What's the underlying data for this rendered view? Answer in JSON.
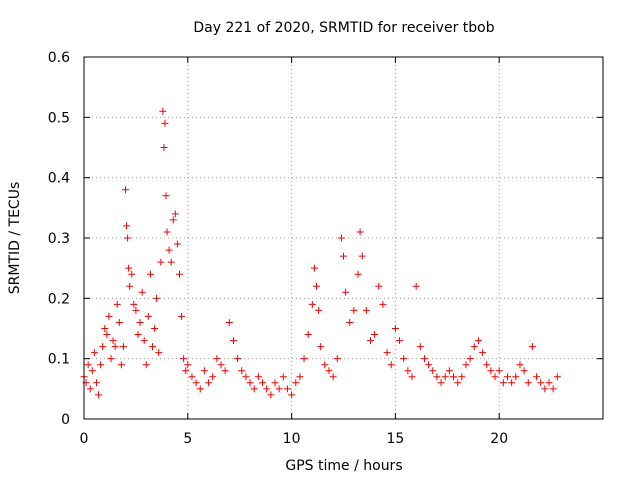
{
  "chart_data": {
    "type": "scatter",
    "title": "Day 221 of 2020, SRMTID for receiver tbob",
    "xlabel": "GPS time / hours",
    "ylabel": "SRMTID / TECUs",
    "xlim": [
      0,
      25
    ],
    "ylim": [
      0,
      0.6
    ],
    "xticks": [
      0,
      5,
      10,
      15,
      20
    ],
    "yticks": [
      0,
      0.1,
      0.2,
      0.3,
      0.4,
      0.5,
      0.6
    ],
    "xtick_labels": [
      "0",
      "5",
      "10",
      "15",
      "20"
    ],
    "ytick_labels": [
      "0",
      "0.1",
      "0.2",
      "0.3",
      "0.4",
      "0.5",
      "0.6"
    ],
    "grid": true,
    "marker": "+",
    "color": "#ff0000",
    "series": [
      {
        "name": "SRMTID",
        "x": [
          0.0,
          0.1,
          0.2,
          0.3,
          0.4,
          0.5,
          0.6,
          0.7,
          0.8,
          0.9,
          1.0,
          1.1,
          1.2,
          1.3,
          1.4,
          1.5,
          1.6,
          1.7,
          1.8,
          1.9,
          2.0,
          2.05,
          2.1,
          2.15,
          2.2,
          2.3,
          2.4,
          2.5,
          2.6,
          2.7,
          2.8,
          2.9,
          3.0,
          3.1,
          3.2,
          3.3,
          3.4,
          3.5,
          3.6,
          3.7,
          3.8,
          3.85,
          3.9,
          3.95,
          4.0,
          4.1,
          4.2,
          4.3,
          4.4,
          4.5,
          4.6,
          4.7,
          4.8,
          4.9,
          5.0,
          5.2,
          5.4,
          5.6,
          5.8,
          6.0,
          6.2,
          6.4,
          6.6,
          6.8,
          7.0,
          7.2,
          7.4,
          7.6,
          7.8,
          8.0,
          8.2,
          8.4,
          8.6,
          8.8,
          9.0,
          9.2,
          9.4,
          9.6,
          9.8,
          10.0,
          10.2,
          10.4,
          10.6,
          10.8,
          11.0,
          11.1,
          11.2,
          11.3,
          11.4,
          11.6,
          11.8,
          12.0,
          12.2,
          12.4,
          12.5,
          12.6,
          12.8,
          13.0,
          13.2,
          13.3,
          13.4,
          13.6,
          13.8,
          14.0,
          14.2,
          14.4,
          14.6,
          14.8,
          15.0,
          15.2,
          15.4,
          15.6,
          15.8,
          16.0,
          16.2,
          16.4,
          16.6,
          16.8,
          17.0,
          17.2,
          17.4,
          17.6,
          17.8,
          18.0,
          18.2,
          18.4,
          18.6,
          18.8,
          19.0,
          19.2,
          19.4,
          19.6,
          19.8,
          20.0,
          20.2,
          20.4,
          20.6,
          20.8,
          21.0,
          21.2,
          21.4,
          21.6,
          21.8,
          22.0,
          22.2,
          22.4,
          22.6,
          22.8
        ],
        "y": [
          0.07,
          0.06,
          0.09,
          0.05,
          0.08,
          0.11,
          0.06,
          0.04,
          0.09,
          0.12,
          0.15,
          0.14,
          0.17,
          0.1,
          0.13,
          0.12,
          0.19,
          0.16,
          0.09,
          0.12,
          0.38,
          0.32,
          0.3,
          0.25,
          0.22,
          0.24,
          0.19,
          0.18,
          0.14,
          0.16,
          0.21,
          0.13,
          0.09,
          0.17,
          0.24,
          0.12,
          0.15,
          0.2,
          0.11,
          0.26,
          0.51,
          0.45,
          0.49,
          0.37,
          0.31,
          0.28,
          0.26,
          0.33,
          0.34,
          0.29,
          0.24,
          0.17,
          0.1,
          0.08,
          0.09,
          0.07,
          0.06,
          0.05,
          0.08,
          0.06,
          0.07,
          0.1,
          0.09,
          0.08,
          0.16,
          0.13,
          0.1,
          0.08,
          0.07,
          0.06,
          0.05,
          0.07,
          0.06,
          0.05,
          0.04,
          0.06,
          0.05,
          0.07,
          0.05,
          0.04,
          0.06,
          0.07,
          0.1,
          0.14,
          0.19,
          0.25,
          0.22,
          0.18,
          0.12,
          0.09,
          0.08,
          0.07,
          0.1,
          0.3,
          0.27,
          0.21,
          0.16,
          0.18,
          0.24,
          0.31,
          0.27,
          0.18,
          0.13,
          0.14,
          0.22,
          0.19,
          0.11,
          0.09,
          0.15,
          0.13,
          0.1,
          0.08,
          0.07,
          0.22,
          0.12,
          0.1,
          0.09,
          0.08,
          0.07,
          0.06,
          0.07,
          0.08,
          0.07,
          0.06,
          0.07,
          0.09,
          0.1,
          0.12,
          0.13,
          0.11,
          0.09,
          0.08,
          0.07,
          0.08,
          0.06,
          0.07,
          0.06,
          0.07,
          0.09,
          0.08,
          0.06,
          0.12,
          0.07,
          0.06,
          0.05,
          0.06,
          0.05,
          0.07
        ]
      }
    ]
  }
}
